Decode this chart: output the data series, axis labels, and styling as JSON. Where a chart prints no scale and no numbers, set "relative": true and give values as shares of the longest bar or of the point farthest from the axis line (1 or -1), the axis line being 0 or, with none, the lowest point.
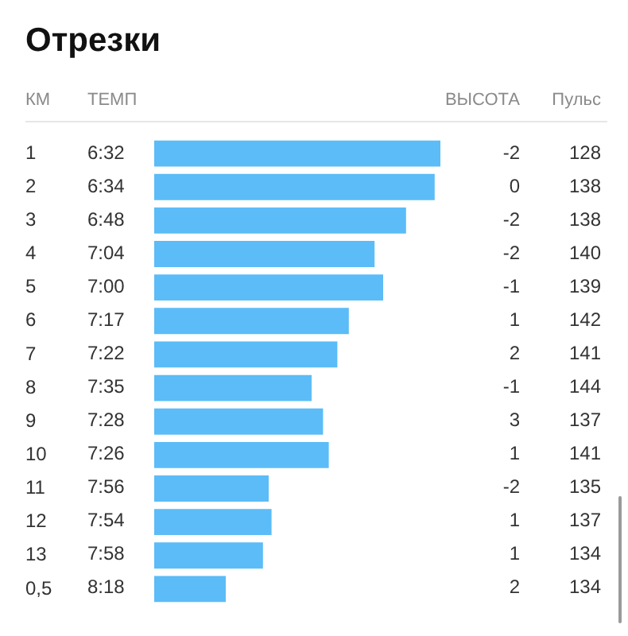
{
  "chart_data": [
    {
      "type": "bar",
      "orientation": "horizontal",
      "relative": true,
      "title": "Отрезки",
      "ylabel": "КМ",
      "color": "#5bbcf7",
      "categories": [
        "1",
        "2",
        "3",
        "4",
        "5",
        "6",
        "7",
        "8",
        "9",
        "10",
        "11",
        "12",
        "13",
        "0,5"
      ],
      "values": [
        1,
        0.98,
        0.88,
        0.77,
        0.8,
        0.68,
        0.64,
        0.55,
        0.59,
        0.61,
        0.4,
        0.41,
        0.38,
        0.25
      ]
    },
    {
      "type": "other",
      "title": "ТЕМП",
      "values": [
        392,
        394,
        408,
        424,
        420,
        437,
        442,
        455,
        448,
        446,
        476,
        474,
        478,
        498
      ],
      "value_labels": [
        "6:32",
        "6:34",
        "6:48",
        "7:04",
        "7:00",
        "7:17",
        "7:22",
        "7:35",
        "7:28",
        "7:26",
        "7:56",
        "7:54",
        "7:58",
        "8:18"
      ]
    },
    {
      "type": "other",
      "title": "ВЫСОТА",
      "values": [
        -2,
        0,
        -2,
        -2,
        -1,
        1,
        2,
        -1,
        3,
        1,
        -2,
        1,
        1,
        2
      ],
      "data_labels": true
    },
    {
      "type": "other",
      "title": "Пульс",
      "values": [
        128,
        138,
        138,
        140,
        139,
        142,
        141,
        144,
        137,
        141,
        135,
        137,
        134,
        134
      ],
      "data_labels": true
    }
  ]
}
